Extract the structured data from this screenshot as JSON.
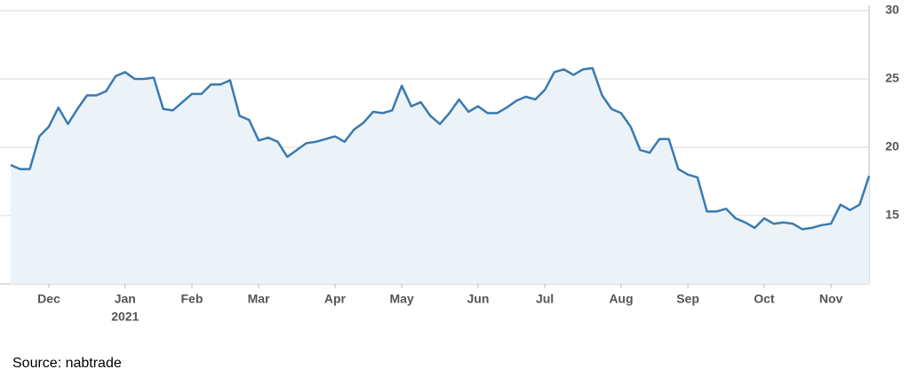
{
  "chart_data": {
    "type": "area",
    "categories": [
      null,
      null,
      null,
      null,
      "Dec",
      null,
      null,
      null,
      null,
      null,
      null,
      null,
      "Jan",
      null,
      null,
      null,
      null,
      null,
      null,
      "Feb",
      null,
      null,
      null,
      null,
      null,
      null,
      "Mar",
      null,
      null,
      null,
      null,
      null,
      null,
      null,
      "Apr",
      null,
      null,
      null,
      null,
      null,
      null,
      "May",
      null,
      null,
      null,
      null,
      null,
      null,
      null,
      "Jun",
      null,
      null,
      null,
      null,
      null,
      null,
      "Jul",
      null,
      null,
      null,
      null,
      null,
      null,
      null,
      "Aug",
      null,
      null,
      null,
      null,
      null,
      null,
      "Sep",
      null,
      null,
      null,
      null,
      null,
      null,
      null,
      "Oct",
      null,
      null,
      null,
      null,
      null,
      null,
      "Nov",
      null,
      null,
      null,
      null
    ],
    "values": [
      18.7,
      18.4,
      18.4,
      20.8,
      21.5,
      22.9,
      21.7,
      22.8,
      23.8,
      23.8,
      24.1,
      25.2,
      25.5,
      25.0,
      25.0,
      25.1,
      22.8,
      22.7,
      23.3,
      23.9,
      23.9,
      24.6,
      24.6,
      24.9,
      22.3,
      22.0,
      20.5,
      20.7,
      20.4,
      19.3,
      19.8,
      20.3,
      20.4,
      20.6,
      20.8,
      20.4,
      21.3,
      21.8,
      22.6,
      22.5,
      22.7,
      24.5,
      23.0,
      23.3,
      22.3,
      21.7,
      22.5,
      23.5,
      22.6,
      23.0,
      22.5,
      22.5,
      22.9,
      23.4,
      23.7,
      23.5,
      24.2,
      25.5,
      25.7,
      25.3,
      25.7,
      25.8,
      23.8,
      22.8,
      22.5,
      21.5,
      19.8,
      19.6,
      20.6,
      20.6,
      18.4,
      18.0,
      17.8,
      15.3,
      15.3,
      15.5,
      14.8,
      14.5,
      14.1,
      14.8,
      14.4,
      14.5,
      14.4,
      14.0,
      14.1,
      14.3,
      14.4,
      15.8,
      15.4,
      15.8,
      17.9
    ],
    "year_label": "2021",
    "color": "#3a7ab1",
    "fill": "#ecf3f8",
    "ylim": [
      10,
      30
    ],
    "yticks": [
      15,
      20,
      25,
      30
    ],
    "grid": true,
    "source": "Source: nabtrade"
  }
}
